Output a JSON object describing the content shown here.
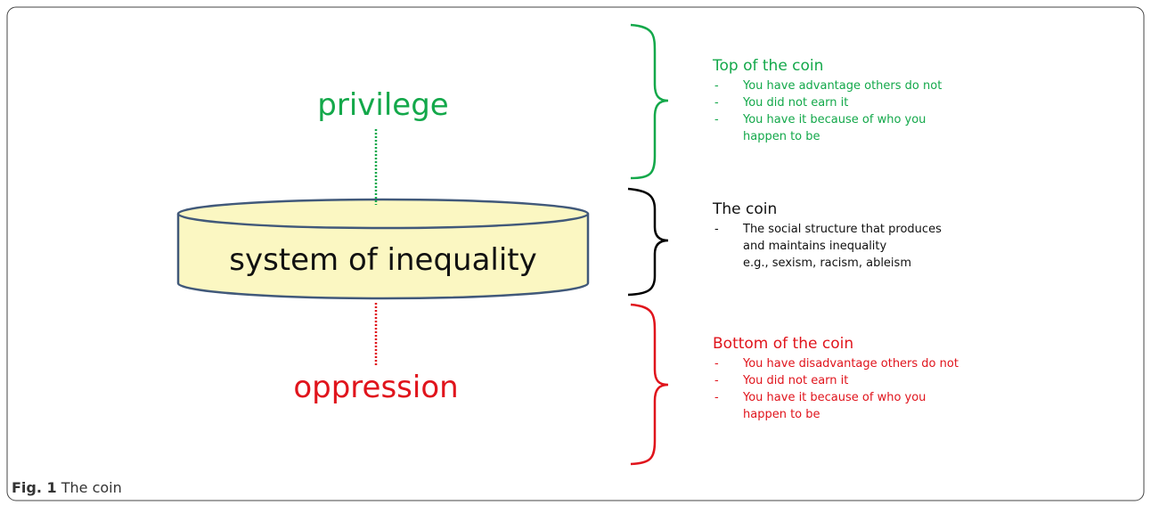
{
  "diagram": {
    "top_label": "privilege",
    "cylinder_label": "system of inequality",
    "bottom_label": "oppression"
  },
  "sections": [
    {
      "title": "Top of the coin",
      "items": [
        {
          "bullet": "-",
          "text": "You have advantage others do not"
        },
        {
          "bullet": "-",
          "text": "You did not earn it"
        },
        {
          "bullet": "-",
          "text": "You have it because of who you happen to be"
        }
      ]
    },
    {
      "title": "The coin",
      "items": [
        {
          "bullet": "-",
          "text": "The social structure that produces and maintains inequality"
        }
      ],
      "note": "e.g., sexism, racism, ableism"
    },
    {
      "title": "Bottom of the coin",
      "items": [
        {
          "bullet": "-",
          "text": "You have disadvantage others do not"
        },
        {
          "bullet": "-",
          "text": "You did not earn it"
        },
        {
          "bullet": "-",
          "text": "You have it because of who you happen to be"
        }
      ]
    }
  ],
  "caption": {
    "label": "Fig. 1",
    "text": "The coin"
  }
}
